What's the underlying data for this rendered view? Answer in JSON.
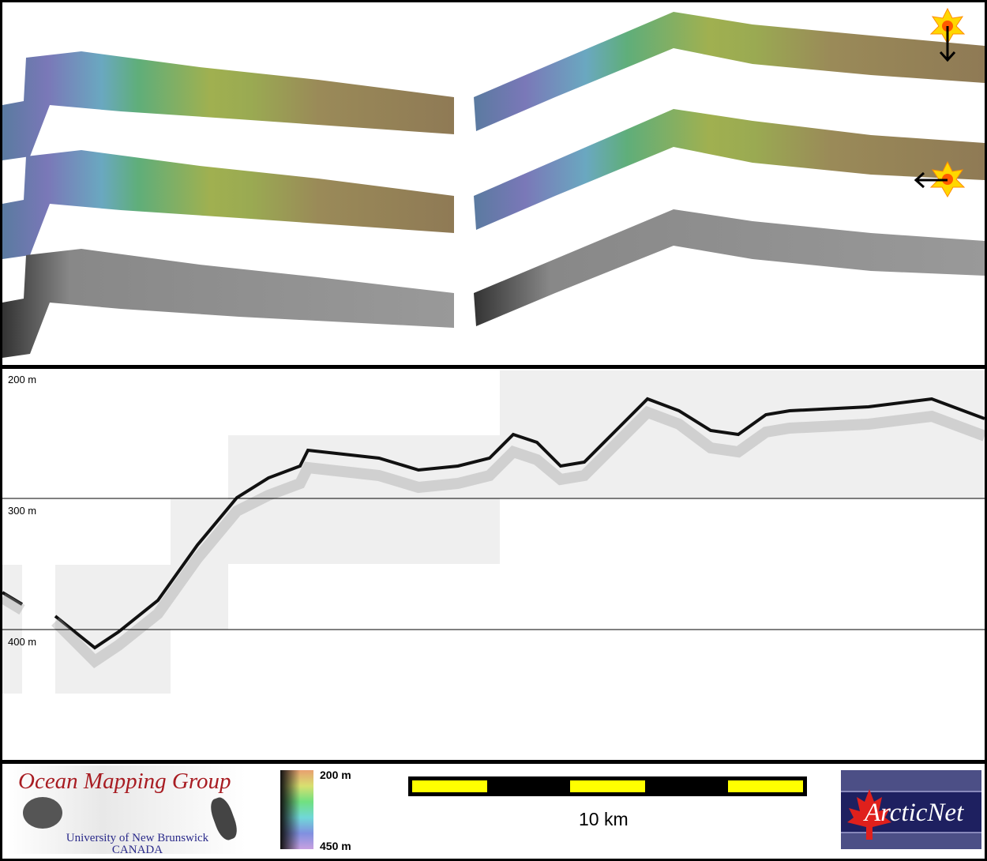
{
  "depth_labels": [
    "200 m",
    "300 m",
    "400 m"
  ],
  "colorbar": {
    "top_label": "200 m",
    "bottom_label": "450 m"
  },
  "scalebar": {
    "label": "10 km",
    "bar_color": "#000000",
    "segment_color": "#ffff00"
  },
  "logos": {
    "omg": {
      "title": "Ocean Mapping Group",
      "line1": "University of New Brunswick",
      "line2": "CANADA"
    },
    "arcticnet": {
      "text": "ArcticNet"
    }
  },
  "illumination_icons": [
    "sun-arrow-down-icon",
    "sun-arrow-left-icon"
  ],
  "colors": {
    "title_red": "#a81c22",
    "subtitle_blue": "#2a2a8a",
    "arcticnet_bg": "#1e2060",
    "maple_red": "#e0201c"
  }
}
